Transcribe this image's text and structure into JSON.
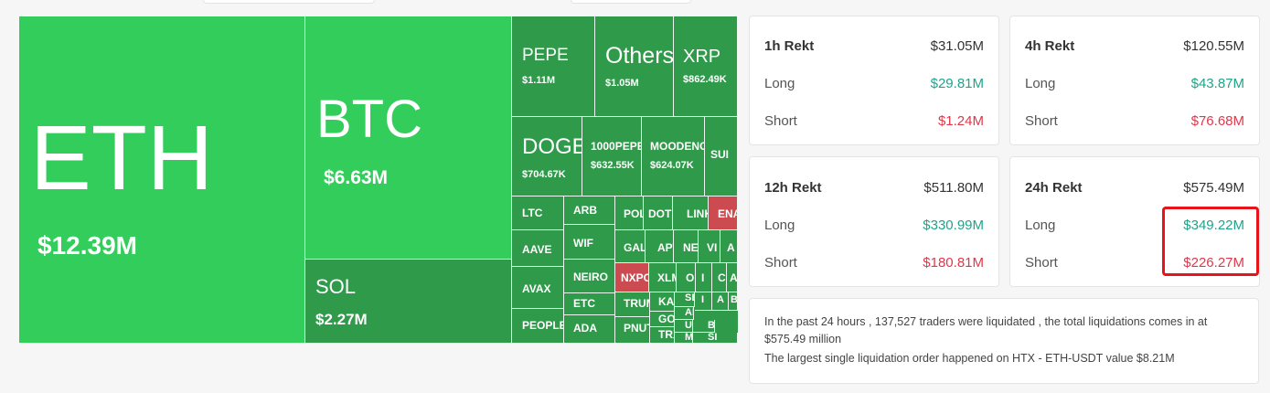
{
  "treemap": {
    "tiles": [
      {
        "symbol": "ETH",
        "value": "$12.39M"
      },
      {
        "symbol": "BTC",
        "value": "$6.63M"
      },
      {
        "symbol": "SOL",
        "value": "$2.27M"
      },
      {
        "symbol": "PEPE",
        "value": "$1.11M"
      },
      {
        "symbol": "Others",
        "value": "$1.05M"
      },
      {
        "symbol": "XRP",
        "value": "$862.49K"
      },
      {
        "symbol": "DOGE",
        "value": "$704.67K"
      },
      {
        "symbol": "1000PEPE",
        "value": "$632.55K"
      },
      {
        "symbol": "MOODENG",
        "value": "$624.07K"
      },
      {
        "symbol": "SUI",
        "value": ""
      },
      {
        "symbol": "LTC",
        "value": ""
      },
      {
        "symbol": "ARB",
        "value": ""
      },
      {
        "symbol": "POL",
        "value": ""
      },
      {
        "symbol": "DOT",
        "value": ""
      },
      {
        "symbol": "LINK",
        "value": ""
      },
      {
        "symbol": "ENA",
        "value": ""
      },
      {
        "symbol": "AAVE",
        "value": ""
      },
      {
        "symbol": "WIF",
        "value": ""
      },
      {
        "symbol": "GALA",
        "value": ""
      },
      {
        "symbol": "APT",
        "value": ""
      },
      {
        "symbol": "NEAR",
        "value": ""
      },
      {
        "symbol": "VI",
        "value": ""
      },
      {
        "symbol": "A",
        "value": ""
      },
      {
        "symbol": "NEIRO",
        "value": ""
      },
      {
        "symbol": "NXPC",
        "value": ""
      },
      {
        "symbol": "XLM",
        "value": ""
      },
      {
        "symbol": "O",
        "value": ""
      },
      {
        "symbol": "I",
        "value": ""
      },
      {
        "symbol": "C",
        "value": ""
      },
      {
        "symbol": "A",
        "value": ""
      },
      {
        "symbol": "AVAX",
        "value": ""
      },
      {
        "symbol": "ETC",
        "value": ""
      },
      {
        "symbol": "TRUMP",
        "value": ""
      },
      {
        "symbol": "KAI",
        "value": ""
      },
      {
        "symbol": "SE",
        "value": ""
      },
      {
        "symbol": "I",
        "value": ""
      },
      {
        "symbol": "A",
        "value": ""
      },
      {
        "symbol": "GOA",
        "value": ""
      },
      {
        "symbol": "AI",
        "value": ""
      },
      {
        "symbol": "B",
        "value": ""
      },
      {
        "symbol": "PEOPLE",
        "value": ""
      },
      {
        "symbol": "ADA",
        "value": ""
      },
      {
        "symbol": "PNUT",
        "value": ""
      },
      {
        "symbol": "UN",
        "value": ""
      },
      {
        "symbol": "BO",
        "value": ""
      },
      {
        "symbol": "TRX",
        "value": ""
      },
      {
        "symbol": "MA",
        "value": ""
      },
      {
        "symbol": "SI",
        "value": ""
      }
    ]
  },
  "stats": {
    "h1": {
      "title": "1h Rekt",
      "total": "$31.05M",
      "long_label": "Long",
      "long": "$29.81M",
      "short_label": "Short",
      "short": "$1.24M"
    },
    "h4": {
      "title": "4h Rekt",
      "total": "$120.55M",
      "long_label": "Long",
      "long": "$43.87M",
      "short_label": "Short",
      "short": "$76.68M"
    },
    "h12": {
      "title": "12h Rekt",
      "total": "$511.80M",
      "long_label": "Long",
      "long": "$330.99M",
      "short_label": "Short",
      "short": "$180.81M"
    },
    "h24": {
      "title": "24h Rekt",
      "total": "$575.49M",
      "long_label": "Long",
      "long": "$349.22M",
      "short_label": "Short",
      "short": "$226.27M"
    }
  },
  "summary": {
    "line1": "In the past 24 hours , 137,527 traders were liquidated , the total liquidations comes in at $575.49 million",
    "line2": "The largest single liquidation order happened on HTX - ETH-USDT value $8.21M"
  },
  "colors": {
    "long": "#1fa38a",
    "short": "#e0374a",
    "highlight": "#e8141b"
  }
}
